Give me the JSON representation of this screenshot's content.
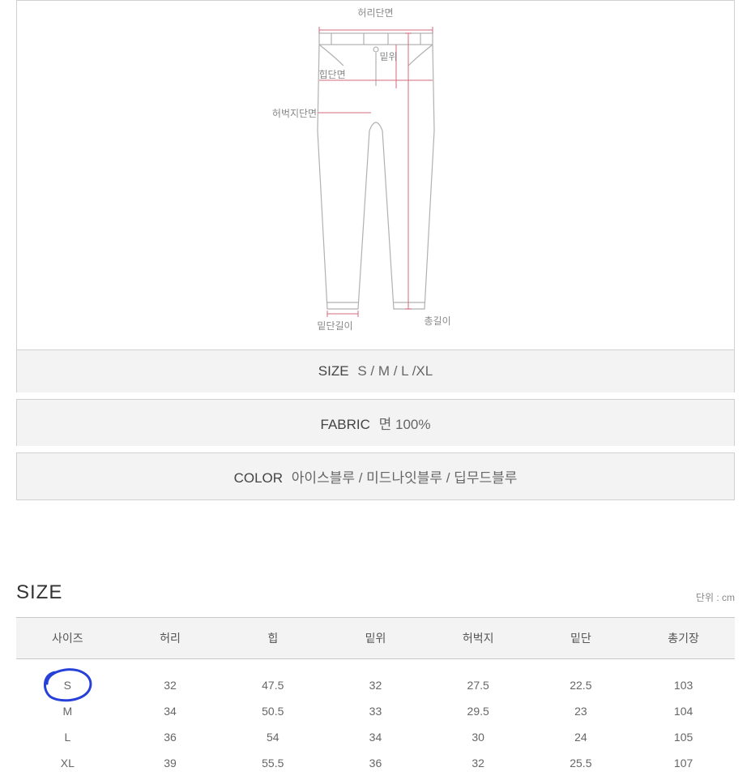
{
  "diagram": {
    "labels": {
      "waist": "허리단면",
      "rise": "밑위",
      "hip": "힙단면",
      "thigh": "허벅지단면",
      "hem": "밑단길이",
      "length": "총길이"
    },
    "line_color": "#b0b0b0",
    "measure_color": "#d46a7e",
    "label_color": "#888888"
  },
  "info": {
    "size": {
      "label": "SIZE",
      "value": "S / M / L /XL"
    },
    "fabric": {
      "label": "FABRIC",
      "value": "면 100%"
    },
    "color": {
      "label": "COLOR",
      "value": "아이스블루 / 미드나잇블루 / 딥무드블루"
    }
  },
  "size_section": {
    "title": "SIZE",
    "unit": "단위 : cm",
    "columns": [
      "사이즈",
      "허리",
      "힙",
      "밑위",
      "허벅지",
      "밑단",
      "총기장"
    ],
    "rows": [
      [
        "S",
        "32",
        "47.5",
        "32",
        "27.5",
        "22.5",
        "103"
      ],
      [
        "M",
        "34",
        "50.5",
        "33",
        "29.5",
        "23",
        "104"
      ],
      [
        "L",
        "36",
        "54",
        "34",
        "30",
        "24",
        "105"
      ],
      [
        "XL",
        "39",
        "55.5",
        "36",
        "32",
        "25.5",
        "107"
      ]
    ],
    "circled_row": 0,
    "circle_color": "#2640d8"
  },
  "style": {
    "panel_border": "#d0d0d0",
    "info_bg": "#f3f3f3",
    "table_header_bg": "#f3f3f3",
    "table_border": "#c8c8c8",
    "text_color": "#555555",
    "body_bg": "#ffffff"
  }
}
